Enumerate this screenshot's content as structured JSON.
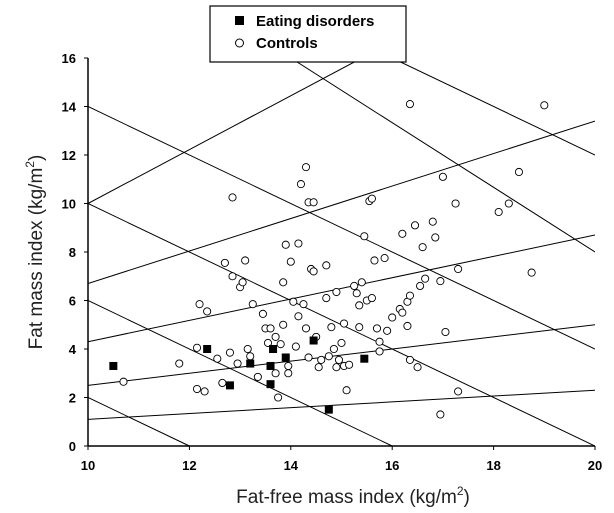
{
  "chart_data": {
    "type": "scatter",
    "xlabel": "Fat-free mass index (kg/m",
    "xlabel_sup": "2",
    "xlabel_end": ")",
    "ylabel": "Fat mass index (kg/m",
    "ylabel_sup": "2",
    "ylabel_end": ")",
    "xlim": [
      10,
      20
    ],
    "ylim": [
      0,
      16
    ],
    "x_ticks": [
      "10",
      "12",
      "14",
      "16",
      "18",
      "20"
    ],
    "y_ticks": [
      "0",
      "2",
      "4",
      "6",
      "8",
      "10",
      "12",
      "14",
      "16"
    ],
    "legend_position": "top-center",
    "grid": false,
    "series": [
      {
        "name": "Eating disorders",
        "marker": "filled-square",
        "color": "#000000",
        "points": [
          [
            10.5,
            3.3
          ],
          [
            12.35,
            4.0
          ],
          [
            12.8,
            2.5
          ],
          [
            13.2,
            3.4
          ],
          [
            13.6,
            3.3
          ],
          [
            13.65,
            4.0
          ],
          [
            13.6,
            2.55
          ],
          [
            13.9,
            3.65
          ],
          [
            14.45,
            4.35
          ],
          [
            14.75,
            1.5
          ],
          [
            15.45,
            3.6
          ]
        ]
      },
      {
        "name": "Controls",
        "marker": "open-circle",
        "color": "#000000",
        "points": [
          [
            10.7,
            2.65
          ],
          [
            11.8,
            3.4
          ],
          [
            12.15,
            2.35
          ],
          [
            12.3,
            2.25
          ],
          [
            12.15,
            4.05
          ],
          [
            12.2,
            5.85
          ],
          [
            12.35,
            5.55
          ],
          [
            12.55,
            3.6
          ],
          [
            12.65,
            2.6
          ],
          [
            12.7,
            7.55
          ],
          [
            12.8,
            3.85
          ],
          [
            12.85,
            7.0
          ],
          [
            12.85,
            10.25
          ],
          [
            12.95,
            3.4
          ],
          [
            13.0,
            6.55
          ],
          [
            13.05,
            6.75
          ],
          [
            13.15,
            4.0
          ],
          [
            13.1,
            7.65
          ],
          [
            13.2,
            3.7
          ],
          [
            13.25,
            5.85
          ],
          [
            13.35,
            2.85
          ],
          [
            13.45,
            5.45
          ],
          [
            13.5,
            4.85
          ],
          [
            13.55,
            4.25
          ],
          [
            13.7,
            3.0
          ],
          [
            13.7,
            4.5
          ],
          [
            13.75,
            2.0
          ],
          [
            13.8,
            4.2
          ],
          [
            13.85,
            6.75
          ],
          [
            13.85,
            5.0
          ],
          [
            13.95,
            3.3
          ],
          [
            13.95,
            3.0
          ],
          [
            13.9,
            8.3
          ],
          [
            14.05,
            5.95
          ],
          [
            14.0,
            7.6
          ],
          [
            14.1,
            4.1
          ],
          [
            14.15,
            5.35
          ],
          [
            14.15,
            8.35
          ],
          [
            14.2,
            10.8
          ],
          [
            14.25,
            5.85
          ],
          [
            14.3,
            11.5
          ],
          [
            14.3,
            4.85
          ],
          [
            14.35,
            3.65
          ],
          [
            14.35,
            10.05
          ],
          [
            14.4,
            7.3
          ],
          [
            14.45,
            10.05
          ],
          [
            14.45,
            7.2
          ],
          [
            14.5,
            4.5
          ],
          [
            14.6,
            3.55
          ],
          [
            14.7,
            7.45
          ],
          [
            14.7,
            6.1
          ],
          [
            14.75,
            3.7
          ],
          [
            14.8,
            4.9
          ],
          [
            14.85,
            4.0
          ],
          [
            14.9,
            3.25
          ],
          [
            14.9,
            6.35
          ],
          [
            14.95,
            3.55
          ],
          [
            15.0,
            4.25
          ],
          [
            15.05,
            5.05
          ],
          [
            15.05,
            3.3
          ],
          [
            15.1,
            2.3
          ],
          [
            15.15,
            3.35
          ],
          [
            15.25,
            6.6
          ],
          [
            15.3,
            6.3
          ],
          [
            15.35,
            5.8
          ],
          [
            15.35,
            4.9
          ],
          [
            15.4,
            6.75
          ],
          [
            15.45,
            8.65
          ],
          [
            15.5,
            6.0
          ],
          [
            15.55,
            10.1
          ],
          [
            15.6,
            6.1
          ],
          [
            15.6,
            10.2
          ],
          [
            15.65,
            7.65
          ],
          [
            15.7,
            4.85
          ],
          [
            15.75,
            3.9
          ],
          [
            15.75,
            4.3
          ],
          [
            15.85,
            7.75
          ],
          [
            15.9,
            4.75
          ],
          [
            16.0,
            5.3
          ],
          [
            16.15,
            5.65
          ],
          [
            16.2,
            8.75
          ],
          [
            16.2,
            5.5
          ],
          [
            16.3,
            4.95
          ],
          [
            16.3,
            5.95
          ],
          [
            16.35,
            14.1
          ],
          [
            16.35,
            3.55
          ],
          [
            16.35,
            6.2
          ],
          [
            16.45,
            9.1
          ],
          [
            16.5,
            3.25
          ],
          [
            16.55,
            6.6
          ],
          [
            16.6,
            8.2
          ],
          [
            16.65,
            6.9
          ],
          [
            16.8,
            9.25
          ],
          [
            16.85,
            8.6
          ],
          [
            16.95,
            6.8
          ],
          [
            17.0,
            11.1
          ],
          [
            17.05,
            4.7
          ],
          [
            17.25,
            10.0
          ],
          [
            17.3,
            7.3
          ],
          [
            17.3,
            2.25
          ],
          [
            16.95,
            1.3
          ],
          [
            18.1,
            9.65
          ],
          [
            18.3,
            10.0
          ],
          [
            18.5,
            11.3
          ],
          [
            18.75,
            7.15
          ],
          [
            19.0,
            14.05
          ],
          [
            13.6,
            4.85
          ],
          [
            14.55,
            3.25
          ]
        ]
      }
    ],
    "reference_lines": [
      {
        "x1": 10,
        "y1": 1.1,
        "x2": 20,
        "y2": 2.3
      },
      {
        "x1": 10,
        "y1": 2.5,
        "x2": 20,
        "y2": 5.0
      },
      {
        "x1": 10,
        "y1": 4.3,
        "x2": 20,
        "y2": 8.7
      },
      {
        "x1": 10,
        "y1": 6.7,
        "x2": 20,
        "y2": 13.4
      },
      {
        "x1": 10,
        "y1": 10.0,
        "x2": 15.4,
        "y2": 16
      },
      {
        "x1": 10,
        "y1": 2.0,
        "x2": 12,
        "y2": 0
      },
      {
        "x1": 10,
        "y1": 6.0,
        "x2": 16,
        "y2": 0
      },
      {
        "x1": 10,
        "y1": 10.0,
        "x2": 20,
        "y2": 0
      },
      {
        "x1": 10,
        "y1": 14.0,
        "x2": 20,
        "y2": 4.0
      },
      {
        "x1": 14.0,
        "y1": 16,
        "x2": 20,
        "y2": 8.0
      },
      {
        "x1": 16.0,
        "y1": 16,
        "x2": 20,
        "y2": 12.0
      }
    ]
  }
}
